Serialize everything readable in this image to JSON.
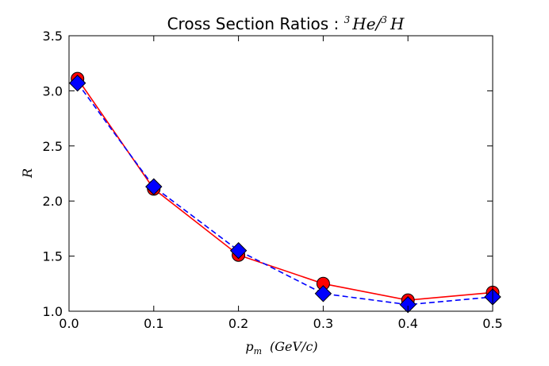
{
  "chart_data": {
    "type": "line",
    "title": "Cross Section Ratios : ",
    "title_math": {
      "sup1": "3",
      "num": "He/",
      "sup2": "3",
      "den": "H"
    },
    "xlabel": {
      "var": "p",
      "sub": "m",
      "units": "(GeV/c)"
    },
    "ylabel": "R",
    "xlim": [
      0.0,
      0.5
    ],
    "ylim": [
      1.0,
      3.5
    ],
    "xticks": [
      0.0,
      0.1,
      0.2,
      0.3,
      0.4,
      0.5
    ],
    "xtick_labels": [
      "0.0",
      "0.1",
      "0.2",
      "0.3",
      "0.4",
      "0.5"
    ],
    "yticks": [
      1.0,
      1.5,
      2.0,
      2.5,
      3.0,
      3.5
    ],
    "ytick_labels": [
      "1.0",
      "1.5",
      "2.0",
      "2.5",
      "3.0",
      "3.5"
    ],
    "grid": false,
    "legend": "none",
    "series": [
      {
        "name": "series-red-circles",
        "color": "#ff0000",
        "marker_color": "#ff0000",
        "marker": "circle",
        "linestyle": "solid",
        "x": [
          0.01,
          0.1,
          0.2,
          0.3,
          0.4,
          0.5
        ],
        "y": [
          3.11,
          2.11,
          1.51,
          1.25,
          1.1,
          1.17
        ]
      },
      {
        "name": "series-blue-diamonds",
        "color": "#0000ff",
        "marker_color": "#0000ff",
        "marker": "diamond",
        "linestyle": "dashed",
        "x": [
          0.01,
          0.1,
          0.2,
          0.3,
          0.4,
          0.5
        ],
        "y": [
          3.07,
          2.13,
          1.55,
          1.16,
          1.06,
          1.13
        ]
      }
    ]
  }
}
